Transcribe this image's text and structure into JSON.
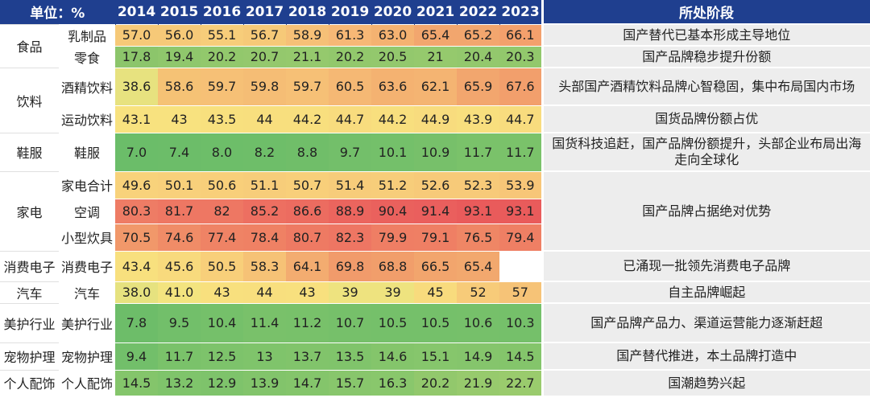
{
  "header": {
    "unit_label": "单位：%",
    "years": [
      "2014",
      "2015",
      "2016",
      "2017",
      "2018",
      "2019",
      "2020",
      "2021",
      "2022",
      "2023"
    ],
    "stage_label": "所处阶段"
  },
  "rows": [
    {
      "category": "食品",
      "sub": "乳制品",
      "values": [
        "57.0",
        "56.0",
        "55.1",
        "56.7",
        "58.9",
        "61.3",
        "63.0",
        "65.4",
        "65.2",
        "66.1"
      ],
      "colors": [
        "#f6c978",
        "#f6c978",
        "#f7cd7a",
        "#f6c978",
        "#f6c077",
        "#f7b876",
        "#f4b271",
        "#f2a66e",
        "#f2a66e",
        "#f3a06c"
      ],
      "stage": "国产替代已基本形成主导地位"
    },
    {
      "category": "",
      "sub": "零食",
      "values": [
        "17.8",
        "19.4",
        "20.2",
        "20.7",
        "21.1",
        "20.2",
        "20.5",
        "21",
        "20.4",
        "20.3"
      ],
      "colors": [
        "#8cc56b",
        "#8fc76c",
        "#92c86c",
        "#94c86d",
        "#95c96d",
        "#92c86c",
        "#93c86d",
        "#95c96d",
        "#93c86d",
        "#92c86c"
      ],
      "stage": "国产品牌稳步提升份额"
    },
    {
      "category": "饮料",
      "sub": "酒精饮料",
      "values": [
        "38.6",
        "58.6",
        "59.7",
        "59.8",
        "59.7",
        "60.5",
        "63.6",
        "62.1",
        "65.9",
        "67.6"
      ],
      "colors": [
        "#e7e27f",
        "#f5c275",
        "#f6c076",
        "#f5bd75",
        "#f6c076",
        "#f5b874",
        "#f4b271",
        "#f4b472",
        "#f2a66e",
        "#f29f6c"
      ],
      "stage": "头部国产酒精饮料品牌心智稳固，集中布局国内市场"
    },
    {
      "category": "",
      "sub": "运动饮料",
      "values": [
        "43.1",
        "43",
        "43.5",
        "44",
        "44.2",
        "44.7",
        "44.2",
        "44.9",
        "43.9",
        "44.7"
      ],
      "colors": [
        "#f8e27f",
        "#f8e27f",
        "#f8e07e",
        "#f8df7e",
        "#f8df7e",
        "#f8dc7e",
        "#f8df7e",
        "#f8dc7e",
        "#f8df7e",
        "#f8dc7e"
      ],
      "stage": "国货品牌份额占优"
    },
    {
      "category": "鞋服",
      "sub": "鞋服",
      "values": [
        "7.0",
        "7.4",
        "8.0",
        "8.2",
        "8.8",
        "9.7",
        "10.1",
        "10.9",
        "11.7",
        "11.7"
      ],
      "colors": [
        "#6bbd69",
        "#6cbd69",
        "#6dbe69",
        "#6ebe69",
        "#70be69",
        "#73bf6a",
        "#74c06a",
        "#77c06a",
        "#7ac26a",
        "#7ac26a"
      ],
      "stage": "国货科技追赶，国产品牌份额提升，头部企业布局出海走向全球化"
    },
    {
      "category": "家电",
      "sub": "家电合计",
      "values": [
        "49.6",
        "50.1",
        "50.6",
        "51.1",
        "50.7",
        "51.4",
        "51.2",
        "52.6",
        "52.3",
        "53.9"
      ],
      "colors": [
        "#f8d27b",
        "#f8d07b",
        "#f8cf7a",
        "#f7cd7a",
        "#f8cf7a",
        "#f7cc7a",
        "#f7cd7a",
        "#f7ca79",
        "#f7ca79",
        "#f7c678"
      ],
      "stage": "国产品牌占据绝对优势"
    },
    {
      "category": "",
      "sub": "空调",
      "values": [
        "80.3",
        "81.7",
        "82",
        "85.2",
        "86.6",
        "88.9",
        "90.4",
        "91.4",
        "93.1",
        "93.1"
      ],
      "colors": [
        "#ee7c65",
        "#ee7763",
        "#ee7763",
        "#ed6f61",
        "#ec6c60",
        "#eb655e",
        "#ea615d",
        "#ea5f5d",
        "#e95b5b",
        "#e95b5b"
      ],
      "stage": ""
    },
    {
      "category": "",
      "sub": "小型炊具",
      "values": [
        "70.5",
        "74.6",
        "77.4",
        "78.4",
        "80.7",
        "82.3",
        "79.9",
        "79.1",
        "76.5",
        "79.4"
      ],
      "colors": [
        "#f1986a",
        "#f08c67",
        "#ef8365",
        "#ef8164",
        "#ee7a63",
        "#ee7663",
        "#ef7e64",
        "#ef7f64",
        "#ef8665",
        "#ef7f64"
      ],
      "stage": ""
    },
    {
      "category": "消费电子",
      "sub": "消费电子",
      "values": [
        "43.4",
        "45.6",
        "50.5",
        "58.3",
        "64.1",
        "69.8",
        "68.8",
        "66.5",
        "65.4",
        ""
      ],
      "colors": [
        "#f8e07e",
        "#f8da7d",
        "#f8cf7a",
        "#f6c276",
        "#f3ac70",
        "#f19b6b",
        "#f19e6b",
        "#f2a56d",
        "#f2a86e",
        "#ffffff"
      ],
      "stage": "已涌现一批领先消费电子品牌"
    },
    {
      "category": "汽车",
      "sub": "汽车",
      "values": [
        "38.0",
        "41.0",
        "43",
        "44",
        "43",
        "39",
        "39",
        "45",
        "52",
        "57"
      ],
      "colors": [
        "#e6e27f",
        "#f3e47f",
        "#f8e07e",
        "#f8df7e",
        "#f8e07e",
        "#eee37f",
        "#eee37f",
        "#f8db7d",
        "#f7cb79",
        "#f6c377"
      ],
      "stage": "自主品牌崛起"
    },
    {
      "category": "美护行业",
      "sub": "美护行业",
      "values": [
        "7.8",
        "9.5",
        "10.4",
        "11.4",
        "11.2",
        "10.7",
        "10.5",
        "10.5",
        "10.6",
        "10.3"
      ],
      "colors": [
        "#6dbd69",
        "#72bf6a",
        "#75c06a",
        "#79c16a",
        "#78c16a",
        "#76c06a",
        "#75c06a",
        "#75c06a",
        "#76c06a",
        "#75c06a"
      ],
      "stage": "国产品牌产品力、渠道运营能力逐渐赶超"
    },
    {
      "category": "宠物护理",
      "sub": "宠物护理",
      "values": [
        "9.4",
        "11.7",
        "12.5",
        "13",
        "13.7",
        "13.5",
        "14.6",
        "15.1",
        "14.9",
        "14.5"
      ],
      "colors": [
        "#72bf6a",
        "#7ac26a",
        "#7dc36b",
        "#7fc46b",
        "#81c46b",
        "#80c46b",
        "#84c56b",
        "#86c66c",
        "#85c56c",
        "#84c56b"
      ],
      "stage": "国产替代推进，本土品牌打造中"
    },
    {
      "category": "个人配饰",
      "sub": "个人配饰",
      "values": [
        "14.5",
        "13.2",
        "12.9",
        "13.9",
        "14.7",
        "15.7",
        "16.3",
        "20.2",
        "21.9",
        "22.7"
      ],
      "colors": [
        "#84c56b",
        "#7fc46b",
        "#7ec36b",
        "#82c46b",
        "#84c56b",
        "#88c66c",
        "#89c76c",
        "#92c86c",
        "#97ca6d",
        "#9acb6d"
      ],
      "stage": "国潮趋势兴起"
    }
  ]
}
